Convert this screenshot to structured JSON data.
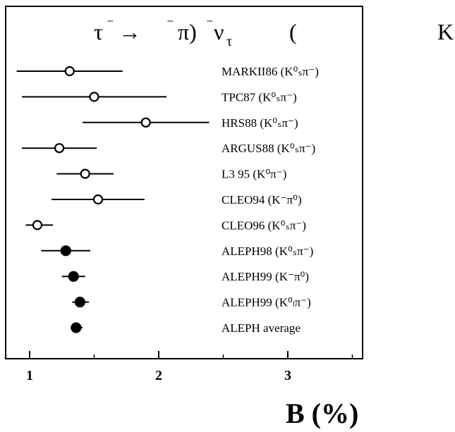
{
  "chart_data": {
    "type": "scatter",
    "title_parts": [
      "τ",
      "⁻",
      "→",
      "⁻",
      "π)",
      "⁻",
      "ν",
      "τ",
      "(",
      "K"
    ],
    "xlabel": "B (%)",
    "xlim": [
      0.85,
      3.6
    ],
    "xticks": [
      "1",
      "2",
      "3"
    ],
    "series_styles": {
      "open": "open circle",
      "filled": "filled circle"
    },
    "entries": [
      {
        "label": "MARKII86 (K⁰ₛπ⁻)",
        "value": 1.31,
        "low": 0.9,
        "high": 1.72,
        "marker": "open"
      },
      {
        "label": "TPC87 (K⁰ₛπ⁻)",
        "value": 1.5,
        "low": 0.94,
        "high": 2.06,
        "marker": "open"
      },
      {
        "label": "HRS88 (K⁰ₛπ⁻)",
        "value": 1.9,
        "low": 1.41,
        "high": 2.39,
        "marker": "open"
      },
      {
        "label": "ARGUS88 (K⁰ₛπ⁻)",
        "value": 1.23,
        "low": 0.94,
        "high": 1.52,
        "marker": "open"
      },
      {
        "label": "L3 95 (K⁰π⁻)",
        "value": 1.43,
        "low": 1.21,
        "high": 1.65,
        "marker": "open"
      },
      {
        "label": "CLEO94 (K⁻π⁰)",
        "value": 1.53,
        "low": 1.17,
        "high": 1.89,
        "marker": "open"
      },
      {
        "label": "CLEO96 (K⁰ₛπ⁻)",
        "value": 1.06,
        "low": 0.97,
        "high": 1.18,
        "marker": "open"
      },
      {
        "label": "ALEPH98 (K⁰ₛπ⁻)",
        "value": 1.28,
        "low": 1.09,
        "high": 1.47,
        "marker": "filled"
      },
      {
        "label": "ALEPH99 (K⁻π⁰)",
        "value": 1.34,
        "low": 1.25,
        "high": 1.43,
        "marker": "filled"
      },
      {
        "label": "ALEPH99 (K⁰ₗπ⁻)",
        "value": 1.39,
        "low": 1.33,
        "high": 1.46,
        "marker": "filled"
      },
      {
        "label": "ALEPH average",
        "value": 1.36,
        "low": 1.32,
        "high": 1.41,
        "marker": "filled"
      }
    ]
  }
}
